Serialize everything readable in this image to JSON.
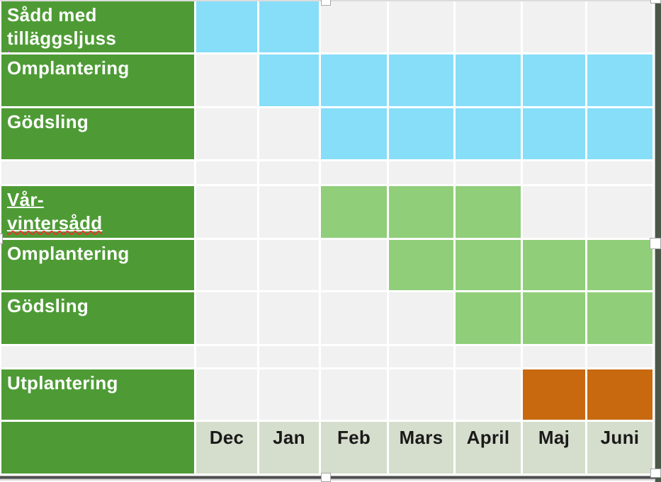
{
  "table": {
    "months": [
      "Dec",
      "Jan",
      "Feb",
      "Mars",
      "April",
      "Maj",
      "Juni"
    ],
    "rows": [
      {
        "type": "task",
        "fill": "blue",
        "label": "Sådd med tilläggsljuss",
        "caret": true,
        "cells": [
          1,
          1,
          0,
          0,
          0,
          0,
          0
        ]
      },
      {
        "type": "task",
        "fill": "blue",
        "label": "Omplantering",
        "cells": [
          0,
          1,
          1,
          1,
          1,
          1,
          1
        ]
      },
      {
        "type": "task",
        "fill": "blue",
        "label": "Gödsling",
        "cells": [
          0,
          0,
          1,
          1,
          1,
          1,
          1
        ]
      },
      {
        "type": "spacer",
        "label": "",
        "cells": [
          0,
          0,
          0,
          0,
          0,
          0,
          0
        ]
      },
      {
        "type": "task",
        "fill": "green",
        "label": "Vår-vintersådd",
        "label_prefix": "Vår-",
        "label_squiggle": "vintersådd",
        "underline": true,
        "squiggle": true,
        "cells": [
          0,
          0,
          1,
          1,
          1,
          0,
          0
        ]
      },
      {
        "type": "task",
        "fill": "green",
        "label": "Omplantering",
        "cells": [
          0,
          0,
          0,
          1,
          1,
          1,
          1
        ]
      },
      {
        "type": "task",
        "fill": "green",
        "label": "Gödsling",
        "cells": [
          0,
          0,
          0,
          0,
          1,
          1,
          1
        ]
      },
      {
        "type": "spacer",
        "label": "",
        "cells": [
          0,
          0,
          0,
          0,
          0,
          0,
          0
        ]
      },
      {
        "type": "task",
        "fill": "orange",
        "label": "Utplantering",
        "cells": [
          0,
          0,
          0,
          0,
          0,
          1,
          1
        ]
      },
      {
        "type": "months",
        "label": ""
      }
    ]
  },
  "chart_data": {
    "type": "table",
    "title": "",
    "columns": [
      "Dec",
      "Jan",
      "Feb",
      "Mars",
      "April",
      "Maj",
      "Juni"
    ],
    "rows": [
      {
        "label": "Sådd med tilläggsljuss",
        "active_months": [
          "Dec",
          "Jan"
        ],
        "color": "#86DEF8"
      },
      {
        "label": "Omplantering",
        "active_months": [
          "Jan",
          "Feb",
          "Mars",
          "April",
          "Maj",
          "Juni"
        ],
        "color": "#86DEF8"
      },
      {
        "label": "Gödsling",
        "active_months": [
          "Feb",
          "Mars",
          "April",
          "Maj",
          "Juni"
        ],
        "color": "#86DEF8"
      },
      {
        "label": "Vår-vintersådd",
        "active_months": [
          "Feb",
          "Mars",
          "April"
        ],
        "color": "#90CE7A"
      },
      {
        "label": "Omplantering",
        "active_months": [
          "Mars",
          "April",
          "Maj",
          "Juni"
        ],
        "color": "#90CE7A"
      },
      {
        "label": "Gödsling",
        "active_months": [
          "April",
          "Maj",
          "Juni"
        ],
        "color": "#90CE7A"
      },
      {
        "label": "Utplantering",
        "active_months": [
          "Maj",
          "Juni"
        ],
        "color": "#C8690F"
      }
    ],
    "legend": false,
    "grid": true
  },
  "colors": {
    "row_label_bg": "#4E9B35",
    "blue_cell": "#86DEF8",
    "green_cell": "#90CE7A",
    "orange_cell": "#C8690F",
    "empty_cell": "#F1F1F1",
    "month_row_bg": "#D5DECC",
    "month_text": "#1A1A1A",
    "gridline": "#FFFFFF",
    "slide_edge": "#4A5749",
    "text_caret": "#C45AD8",
    "spellcheck_squiggle": "#E03C31"
  }
}
